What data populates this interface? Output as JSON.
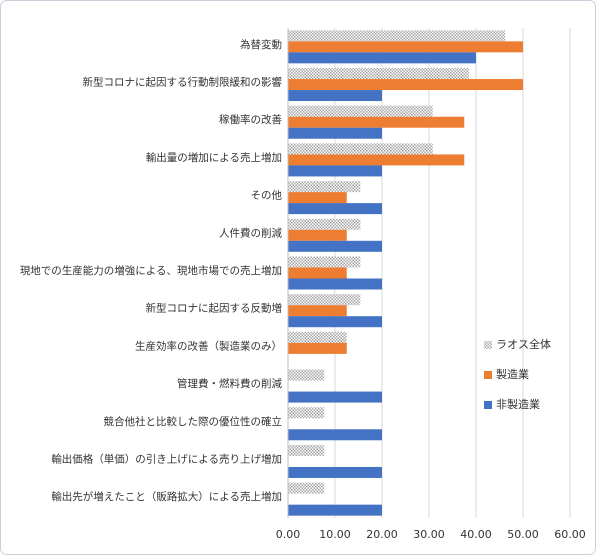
{
  "chart_data": {
    "type": "hbar",
    "categories": [
      "為替変動",
      "新型コロナに起因する行動制限緩和の影響",
      "稼働率の改善",
      "輸出量の増加による売上増加",
      "その他",
      "人件費の削減",
      "現地での生産能力の増強による、現地市場での売上増加",
      "新型コロナに起因する反動増",
      "生産効率の改善（製造業のみ）",
      "管理費・燃料費の削減",
      "競合他社と比較した際の優位性の確立",
      "輸出価格（単価）の引き上げによる売り上げ増加",
      "輸出先が増えたこと（販路拡大）による売上増加"
    ],
    "series": [
      {
        "name": "ラオス全体",
        "color": "#a6a6a6",
        "pattern": "dots",
        "values": [
          46.2,
          38.5,
          30.8,
          30.8,
          15.4,
          15.4,
          15.4,
          15.4,
          12.5,
          7.7,
          7.7,
          7.7,
          7.7
        ]
      },
      {
        "name": "製造業",
        "color": "#ed7d31",
        "values": [
          50,
          50,
          37.5,
          37.5,
          12.5,
          12.5,
          12.5,
          12.5,
          12.5,
          null,
          null,
          null,
          null
        ]
      },
      {
        "name": "非製造業",
        "color": "#4472c4",
        "values": [
          40,
          20,
          20,
          20,
          20,
          20,
          20,
          20,
          null,
          20,
          20,
          20,
          20
        ]
      }
    ],
    "xlim": [
      0,
      60
    ],
    "xticks": [
      {
        "value": 0,
        "label": "0.00"
      },
      {
        "value": 10,
        "label": "10.00"
      },
      {
        "value": 20,
        "label": "20.00"
      },
      {
        "value": 30,
        "label": "30.00"
      },
      {
        "value": 40,
        "label": "40.00"
      },
      {
        "value": 50,
        "label": "50.00"
      },
      {
        "value": 60,
        "label": "60.00"
      }
    ],
    "grid": true,
    "legend": "right"
  }
}
